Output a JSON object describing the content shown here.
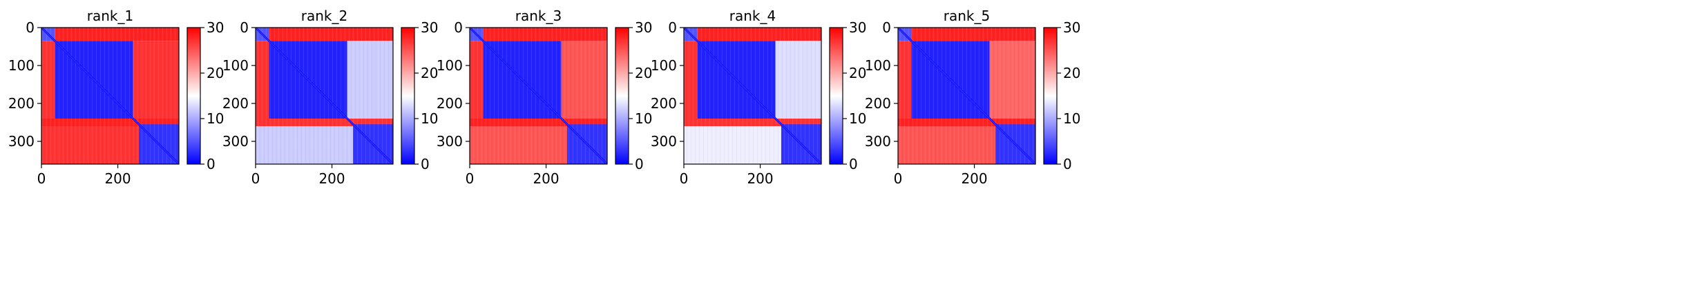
{
  "chart_data": [
    {
      "type": "heatmap",
      "title": "rank_1",
      "xlim": [
        0,
        360
      ],
      "ylim": [
        360,
        0
      ],
      "xticks": [
        0,
        200
      ],
      "yticks": [
        0,
        100,
        200,
        300
      ],
      "colorbar": {
        "min": 0,
        "max": 30,
        "ticks": [
          0,
          10,
          20,
          30
        ],
        "colormap": "bwr"
      },
      "blocks": [
        {
          "r": [
            0,
            35
          ],
          "c": [
            0,
            35
          ],
          "value": 5
        },
        {
          "r": [
            0,
            35
          ],
          "c": [
            35,
            360
          ],
          "value": 28
        },
        {
          "r": [
            35,
            240
          ],
          "c": [
            0,
            35
          ],
          "value": 27
        },
        {
          "r": [
            35,
            240
          ],
          "c": [
            35,
            240
          ],
          "value": 2
        },
        {
          "r": [
            35,
            240
          ],
          "c": [
            240,
            360
          ],
          "value": 27
        },
        {
          "r": [
            240,
            260
          ],
          "c": [
            0,
            360
          ],
          "value": 28
        },
        {
          "r": [
            260,
            360
          ],
          "c": [
            0,
            255
          ],
          "value": 27
        },
        {
          "r": [
            255,
            360
          ],
          "c": [
            255,
            360
          ],
          "value": 3
        }
      ]
    },
    {
      "type": "heatmap",
      "title": "rank_2",
      "xlim": [
        0,
        360
      ],
      "ylim": [
        360,
        0
      ],
      "xticks": [
        0,
        200
      ],
      "yticks": [
        0,
        100,
        200,
        300
      ],
      "colorbar": {
        "min": 0,
        "max": 30,
        "ticks": [
          0,
          10,
          20,
          30
        ],
        "colormap": "bwr"
      },
      "blocks": [
        {
          "r": [
            0,
            35
          ],
          "c": [
            0,
            35
          ],
          "value": 5
        },
        {
          "r": [
            0,
            35
          ],
          "c": [
            35,
            360
          ],
          "value": 28
        },
        {
          "r": [
            35,
            240
          ],
          "c": [
            0,
            35
          ],
          "value": 27
        },
        {
          "r": [
            35,
            240
          ],
          "c": [
            35,
            240
          ],
          "value": 2
        },
        {
          "r": [
            35,
            240
          ],
          "c": [
            240,
            360
          ],
          "value": 12
        },
        {
          "r": [
            240,
            260
          ],
          "c": [
            0,
            360
          ],
          "value": 27
        },
        {
          "r": [
            260,
            360
          ],
          "c": [
            0,
            255
          ],
          "value": 12
        },
        {
          "r": [
            255,
            360
          ],
          "c": [
            255,
            360
          ],
          "value": 3
        }
      ]
    },
    {
      "type": "heatmap",
      "title": "rank_3",
      "xlim": [
        0,
        360
      ],
      "ylim": [
        360,
        0
      ],
      "xticks": [
        0,
        200
      ],
      "yticks": [
        0,
        100,
        200,
        300
      ],
      "colorbar": {
        "min": 0,
        "max": 30,
        "ticks": [
          0,
          10,
          20,
          30
        ],
        "colormap": "bwr"
      },
      "blocks": [
        {
          "r": [
            0,
            35
          ],
          "c": [
            0,
            35
          ],
          "value": 5
        },
        {
          "r": [
            0,
            35
          ],
          "c": [
            35,
            360
          ],
          "value": 28
        },
        {
          "r": [
            35,
            240
          ],
          "c": [
            0,
            35
          ],
          "value": 27
        },
        {
          "r": [
            35,
            240
          ],
          "c": [
            35,
            240
          ],
          "value": 2
        },
        {
          "r": [
            35,
            240
          ],
          "c": [
            240,
            360
          ],
          "value": 25
        },
        {
          "r": [
            240,
            260
          ],
          "c": [
            0,
            360
          ],
          "value": 28
        },
        {
          "r": [
            260,
            360
          ],
          "c": [
            0,
            255
          ],
          "value": 25
        },
        {
          "r": [
            255,
            360
          ],
          "c": [
            255,
            360
          ],
          "value": 3
        }
      ]
    },
    {
      "type": "heatmap",
      "title": "rank_4",
      "xlim": [
        0,
        360
      ],
      "ylim": [
        360,
        0
      ],
      "xticks": [
        0,
        200
      ],
      "yticks": [
        0,
        100,
        200,
        300
      ],
      "colorbar": {
        "min": 0,
        "max": 30,
        "ticks": [
          0,
          10,
          20,
          30
        ],
        "colormap": "bwr"
      },
      "blocks": [
        {
          "r": [
            0,
            35
          ],
          "c": [
            0,
            35
          ],
          "value": 5
        },
        {
          "r": [
            0,
            35
          ],
          "c": [
            35,
            360
          ],
          "value": 28
        },
        {
          "r": [
            35,
            240
          ],
          "c": [
            0,
            35
          ],
          "value": 27
        },
        {
          "r": [
            35,
            240
          ],
          "c": [
            35,
            240
          ],
          "value": 2
        },
        {
          "r": [
            35,
            240
          ],
          "c": [
            240,
            360
          ],
          "value": 13
        },
        {
          "r": [
            240,
            260
          ],
          "c": [
            0,
            360
          ],
          "value": 27
        },
        {
          "r": [
            260,
            360
          ],
          "c": [
            0,
            255
          ],
          "value": 14
        },
        {
          "r": [
            255,
            360
          ],
          "c": [
            255,
            360
          ],
          "value": 3
        }
      ]
    },
    {
      "type": "heatmap",
      "title": "rank_5",
      "xlim": [
        0,
        360
      ],
      "ylim": [
        360,
        0
      ],
      "xticks": [
        0,
        200
      ],
      "yticks": [
        0,
        100,
        200,
        300
      ],
      "colorbar": {
        "min": 0,
        "max": 30,
        "ticks": [
          0,
          10,
          20,
          30
        ],
        "colormap": "bwr"
      },
      "blocks": [
        {
          "r": [
            0,
            35
          ],
          "c": [
            0,
            35
          ],
          "value": 5
        },
        {
          "r": [
            0,
            35
          ],
          "c": [
            35,
            360
          ],
          "value": 28
        },
        {
          "r": [
            35,
            240
          ],
          "c": [
            0,
            35
          ],
          "value": 27
        },
        {
          "r": [
            35,
            240
          ],
          "c": [
            35,
            240
          ],
          "value": 2
        },
        {
          "r": [
            35,
            240
          ],
          "c": [
            240,
            360
          ],
          "value": 24
        },
        {
          "r": [
            240,
            260
          ],
          "c": [
            0,
            360
          ],
          "value": 28
        },
        {
          "r": [
            260,
            360
          ],
          "c": [
            0,
            255
          ],
          "value": 25
        },
        {
          "r": [
            255,
            360
          ],
          "c": [
            255,
            360
          ],
          "value": 3
        }
      ]
    }
  ]
}
